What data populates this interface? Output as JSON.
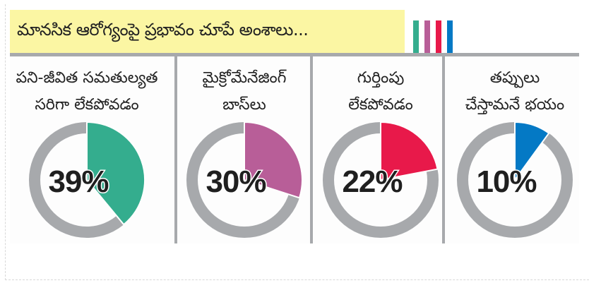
{
  "title": "మానసిక ఆరోగ్యంపై ప్రభావం చూపే అంశాలు...",
  "colors": {
    "background_title": "#fbf6a3",
    "ring": "#a7a9ac",
    "bars": [
      "#34ad8e",
      "#b85e98",
      "#e8194a",
      "#0479c5"
    ]
  },
  "chart_data": {
    "type": "pie",
    "title": "మానసిక ఆరోగ్యంపై ప్రభావం చూపే అంశాలు...",
    "items": [
      {
        "label_lines": [
          "పని-జీవిత సమతుల్యత",
          "సరిగా లేకపోవడం"
        ],
        "value": 39,
        "display": "39%",
        "color": "#34ad8e"
      },
      {
        "label_lines": [
          "మైక్రోమేనేజింగ్",
          "బాస్‌లు"
        ],
        "value": 30,
        "display": "30%",
        "color": "#b85e98"
      },
      {
        "label_lines": [
          "గుర్తింపు",
          "లేకపోవడం"
        ],
        "value": 22,
        "display": "22%",
        "color": "#e8194a"
      },
      {
        "label_lines": [
          "తప్పులు",
          "చేస్తామనే భయం"
        ],
        "value": 10,
        "display": "10%",
        "color": "#0479c5"
      }
    ]
  }
}
